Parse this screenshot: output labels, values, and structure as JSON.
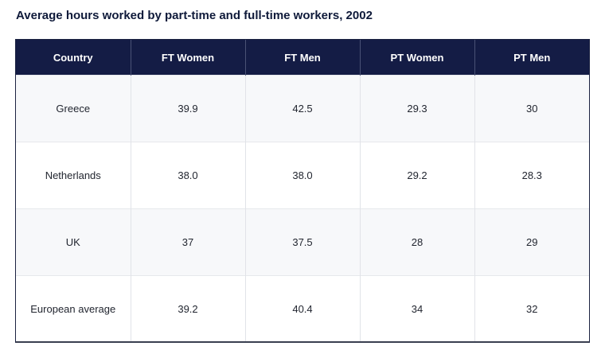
{
  "chart_data": {
    "type": "table",
    "title": "Average hours worked by part-time and full-time workers, 2002",
    "columns": [
      "Country",
      "FT Women",
      "FT Men",
      "PT Women",
      "PT Men"
    ],
    "rows": [
      [
        "Greece",
        "39.9",
        "42.5",
        "29.3",
        "30"
      ],
      [
        "Netherlands",
        "38.0",
        "38.0",
        "29.2",
        "28.3"
      ],
      [
        "UK",
        "37",
        "37.5",
        "28",
        "29"
      ],
      [
        "European average",
        "39.2",
        "40.4",
        "34",
        "32"
      ]
    ]
  },
  "colors": {
    "header_bg": "#141c45",
    "header_text": "#ffffff",
    "row_alt_bg": "#f7f8fa"
  }
}
